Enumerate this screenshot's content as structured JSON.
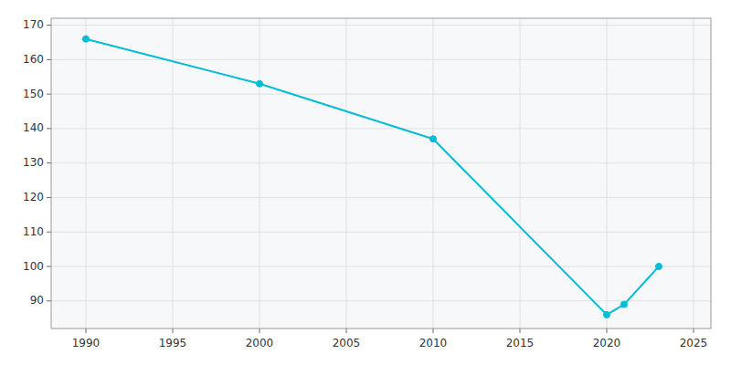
{
  "chart_data": {
    "type": "line",
    "x": [
      1990,
      2000,
      2010,
      2020,
      2021,
      2023
    ],
    "values": [
      166,
      153,
      137,
      86,
      89,
      100
    ],
    "color": "#00bcd4",
    "marker": "circle",
    "xlim": [
      1988,
      2026
    ],
    "ylim": [
      82,
      172
    ],
    "xticks": [
      1990,
      1995,
      2000,
      2005,
      2010,
      2015,
      2020,
      2025
    ],
    "yticks": [
      90,
      100,
      110,
      120,
      130,
      140,
      150,
      160,
      170
    ],
    "grid": true
  }
}
